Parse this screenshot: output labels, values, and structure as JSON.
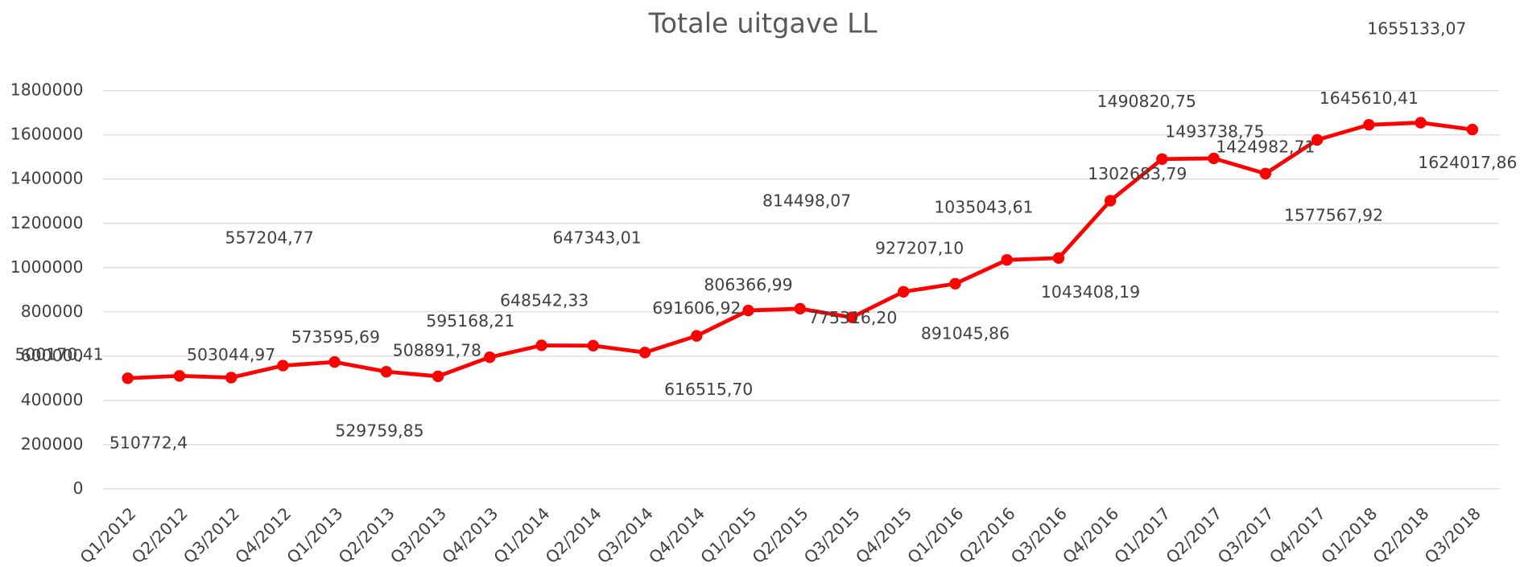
{
  "chart_data": {
    "type": "line",
    "title": "Totale uitgave LL",
    "categories": [
      "Q1/2012",
      "Q2/2012",
      "Q3/2012",
      "Q4/2012",
      "Q1/2013",
      "Q2/2013",
      "Q3/2013",
      "Q4/2013",
      "Q1/2014",
      "Q2/2014",
      "Q3/2014",
      "Q4/2014",
      "Q1/2015",
      "Q2/2015",
      "Q3/2015",
      "Q4/2015",
      "Q1/2016",
      "Q2/2016",
      "Q3/2016",
      "Q4/2016",
      "Q1/2017",
      "Q2/2017",
      "Q3/2017",
      "Q4/2017",
      "Q1/2018",
      "Q2/2018",
      "Q3/2018"
    ],
    "series": [
      {
        "name": "Totale uitgave LL",
        "color": "#ff0000",
        "values": [
          500170.41,
          510772.4,
          503044.97,
          557204.77,
          573595.69,
          529759.85,
          508891.78,
          595168.21,
          648542.33,
          647343.01,
          616515.7,
          691606.92,
          806366.99,
          814498.07,
          775316.2,
          891045.86,
          927207.1,
          1035043.61,
          1043408.19,
          1302683.79,
          1490820.75,
          1493738.75,
          1424982.71,
          1577567.92,
          1645610.41,
          1655133.07,
          1624017.86
        ],
        "value_labels": [
          "500170,41",
          "510772,4",
          "503044,97",
          "557204,77",
          "573595,69",
          "529759,85",
          "508891,78",
          "595168,21",
          "648542,33",
          "647343,01",
          "616515,70",
          "691606,92",
          "806366,99",
          "814498,07",
          "775316,20",
          "891045,86",
          "927207,10",
          "1035043,61",
          "1043408,19",
          "1302683,79",
          "1490820,75",
          "1493738,75",
          "1424982,71",
          "1577567,92",
          "1645610,41",
          "1655133,07",
          "1624017,86"
        ]
      }
    ],
    "ylim": [
      0,
      1800000
    ],
    "yticks": [
      0,
      200000,
      400000,
      600000,
      800000,
      1000000,
      1200000,
      1400000,
      1600000,
      1800000
    ],
    "grid": true
  }
}
